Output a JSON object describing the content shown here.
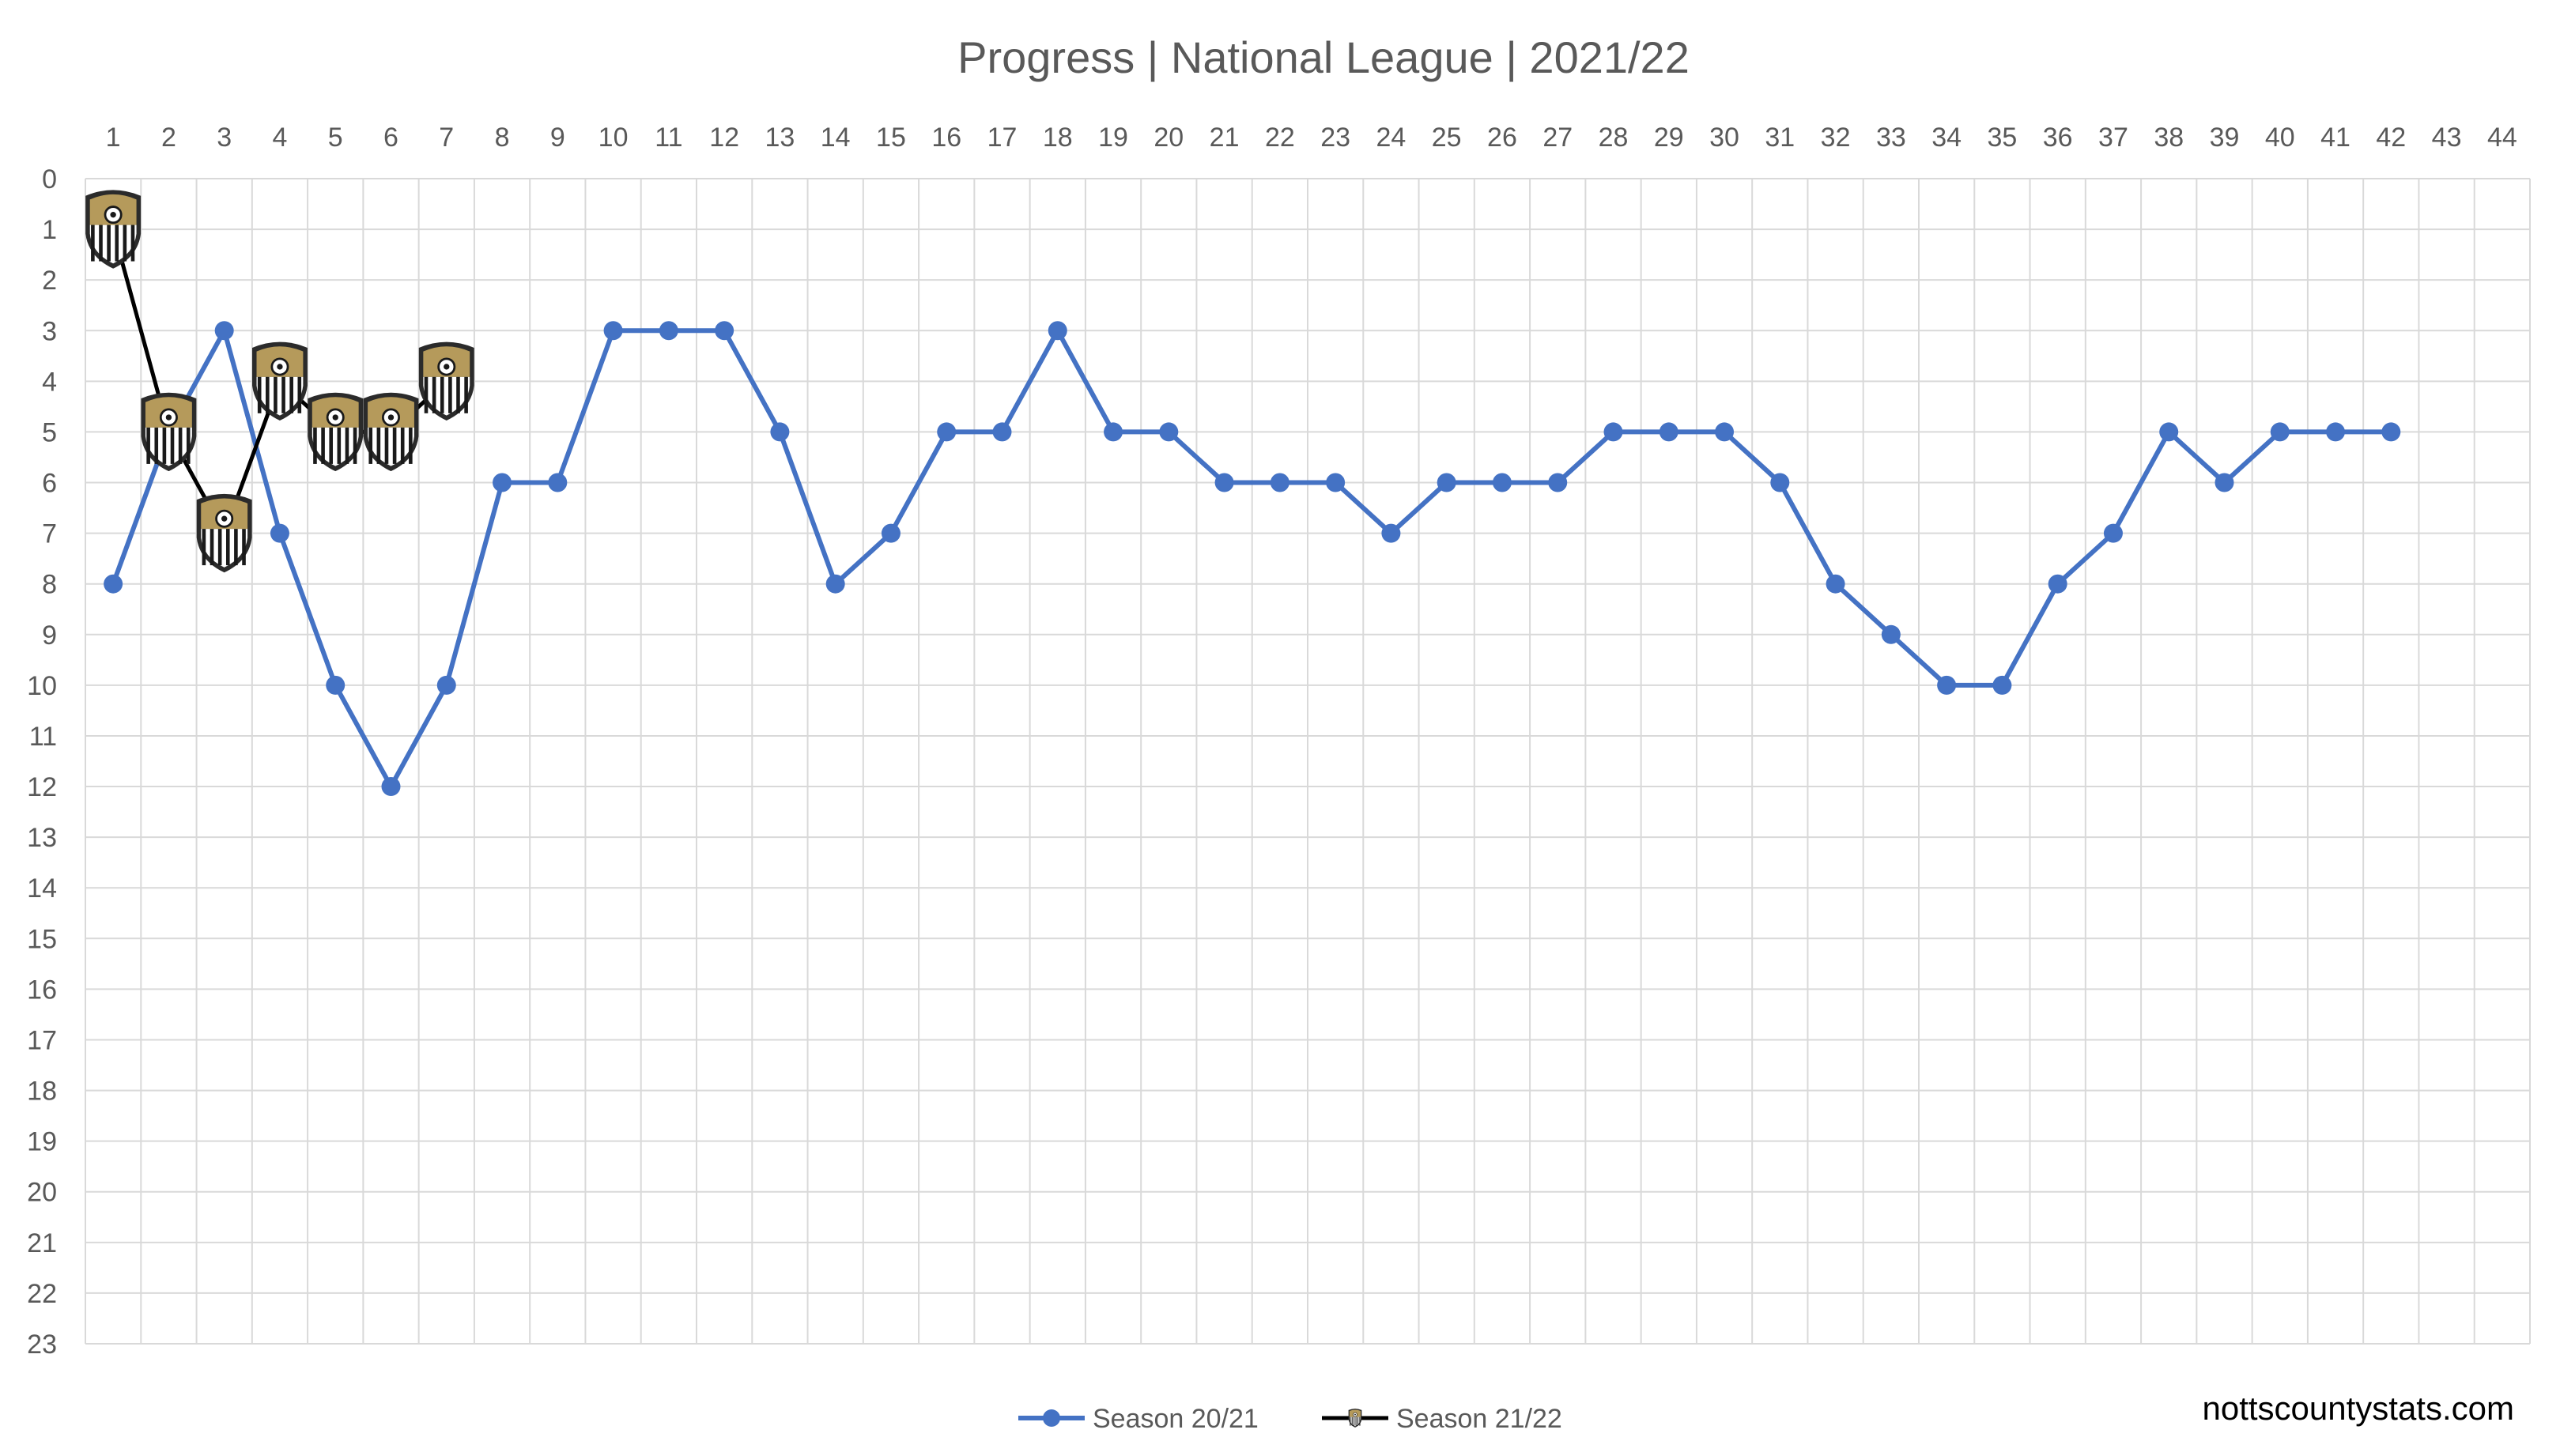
{
  "credit": "nottscountystats.com",
  "colors": {
    "series_2021": "#4472c4",
    "series_2122": "#000000",
    "crest_gold": "#b59a5b",
    "grid": "#d9d9d9",
    "text": "#595959"
  },
  "chart_data": {
    "type": "line",
    "title": "Progress | National League | 2021/22",
    "xlabel": "",
    "ylabel": "",
    "x_range": [
      1,
      44
    ],
    "ylim": [
      0,
      23
    ],
    "y_inverted": true,
    "x_axis_position": "top",
    "grid": true,
    "legend_position": "bottom",
    "x_ticks": [
      1,
      2,
      3,
      4,
      5,
      6,
      7,
      8,
      9,
      10,
      11,
      12,
      13,
      14,
      15,
      16,
      17,
      18,
      19,
      20,
      21,
      22,
      23,
      24,
      25,
      26,
      27,
      28,
      29,
      30,
      31,
      32,
      33,
      34,
      35,
      36,
      37,
      38,
      39,
      40,
      41,
      42,
      43,
      44
    ],
    "y_ticks": [
      0,
      1,
      2,
      3,
      4,
      5,
      6,
      7,
      8,
      9,
      10,
      11,
      12,
      13,
      14,
      15,
      16,
      17,
      18,
      19,
      20,
      21,
      22,
      23
    ],
    "series": [
      {
        "name": "Season 20/21",
        "marker": "circle",
        "x": [
          1,
          2,
          3,
          4,
          5,
          6,
          7,
          8,
          9,
          10,
          11,
          12,
          13,
          14,
          15,
          16,
          17,
          18,
          19,
          20,
          21,
          22,
          23,
          24,
          25,
          26,
          27,
          28,
          29,
          30,
          31,
          32,
          33,
          34,
          35,
          36,
          37,
          38,
          39,
          40,
          41,
          42
        ],
        "values": [
          8,
          5,
          3,
          7,
          10,
          12,
          10,
          6,
          6,
          3,
          3,
          3,
          5,
          8,
          7,
          5,
          5,
          3,
          5,
          5,
          6,
          6,
          6,
          7,
          6,
          6,
          6,
          5,
          5,
          5,
          6,
          8,
          9,
          10,
          10,
          8,
          7,
          5,
          6,
          5,
          5,
          5
        ]
      },
      {
        "name": "Season 21/22",
        "marker": "crest",
        "x": [
          1,
          2,
          3,
          4,
          5,
          6,
          7
        ],
        "values": [
          1,
          5,
          7,
          4,
          5,
          5,
          4
        ]
      }
    ]
  }
}
